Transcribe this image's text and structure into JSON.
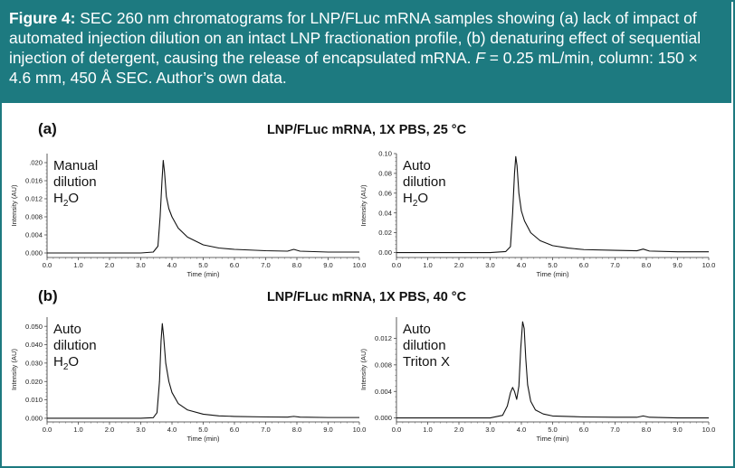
{
  "figure": {
    "label": "Figure 4:",
    "caption_a": " SEC 260 nm chromatograms for LNP/FLuc mRNA samples showing (a) lack of impact of automated injection dilution on an intact LNP fractionation profile, (b) denaturing effect of sequential injection of detergent, causing the release of encapsulated mRNA. ",
    "caption_f": "F",
    "caption_b": " = 0.25 mL/min, column: 150 × 4.6 mm, 450 Å SEC. Author’s own data.",
    "colors": {
      "caption_bg": "#1d7a80",
      "trace": "#111111"
    }
  },
  "rows": [
    {
      "label": "(a)",
      "title": "LNP/FLuc mRNA, 1X PBS, 25 °C"
    },
    {
      "label": "(b)",
      "title": "LNP/FLuc mRNA, 1X PBS, 40 °C"
    }
  ],
  "chart_data": [
    {
      "type": "line",
      "panel": "(a) left",
      "annotation": [
        "Manual",
        "dilution",
        "H2O"
      ],
      "xlabel": "Time (min)",
      "ylabel": "Intensity (AU)",
      "xlim": [
        0,
        10
      ],
      "ylim": [
        -0.001,
        0.022
      ],
      "xticks": [
        0,
        1,
        2,
        3,
        4,
        5,
        6,
        7,
        8,
        9,
        10
      ],
      "xtick_labels": [
        "0.0",
        "1.0",
        "2.0",
        "3.0",
        "4.0",
        "5.0",
        "6.0",
        "7.0",
        "8.0",
        "9.0",
        "10.0"
      ],
      "yticks": [
        0,
        0.004,
        0.008,
        0.012,
        0.016,
        0.02
      ],
      "ytick_labels": [
        "0.000",
        "0.004",
        "0.008",
        "0.012",
        "0.016",
        ".020"
      ],
      "series": [
        {
          "x": [
            0,
            3.0,
            3.4,
            3.55,
            3.62,
            3.68,
            3.72,
            3.76,
            3.82,
            3.9,
            4.0,
            4.2,
            4.5,
            5.0,
            5.5,
            6.0,
            7.0,
            7.7,
            7.9,
            8.1,
            9.0,
            10.0
          ],
          "y": [
            0.0,
            0.0,
            0.0002,
            0.0015,
            0.008,
            0.016,
            0.0205,
            0.018,
            0.0125,
            0.0098,
            0.008,
            0.0055,
            0.0035,
            0.0018,
            0.0011,
            0.0008,
            0.0005,
            0.0004,
            0.0008,
            0.0004,
            0.0002,
            0.0002
          ]
        }
      ]
    },
    {
      "type": "line",
      "panel": "(a) right",
      "annotation": [
        "Auto",
        "dilution",
        "H2O"
      ],
      "xlabel": "Time (min)",
      "ylabel": "Intensity (AU)",
      "xlim": [
        0,
        10
      ],
      "ylim": [
        -0.005,
        0.1
      ],
      "xticks": [
        0,
        1,
        2,
        3,
        4,
        5,
        6,
        7,
        8,
        9,
        10
      ],
      "xtick_labels": [
        "0.0",
        "1.0",
        "2.0",
        "3.0",
        "4.0",
        "5.0",
        "6.0",
        "7.0",
        "8.0",
        "9.0",
        "10.0"
      ],
      "yticks": [
        0,
        0.02,
        0.04,
        0.06,
        0.08,
        0.1
      ],
      "ytick_labels": [
        "0.00",
        "0.02",
        "0.04",
        "0.06",
        "0.08",
        "0.10"
      ],
      "series": [
        {
          "x": [
            0,
            3.0,
            3.5,
            3.65,
            3.72,
            3.78,
            3.82,
            3.86,
            3.92,
            4.0,
            4.1,
            4.3,
            4.6,
            5.0,
            5.5,
            6.0,
            7.0,
            7.7,
            7.9,
            8.1,
            9.0,
            10.0
          ],
          "y": [
            0.0,
            0.0,
            0.001,
            0.006,
            0.04,
            0.08,
            0.097,
            0.088,
            0.06,
            0.042,
            0.032,
            0.02,
            0.012,
            0.007,
            0.0045,
            0.003,
            0.0022,
            0.0018,
            0.0035,
            0.0015,
            0.0008,
            0.0008
          ]
        }
      ]
    },
    {
      "type": "line",
      "panel": "(b) left",
      "annotation": [
        "Auto",
        "dilution",
        "H2O"
      ],
      "xlabel": "Time (min)",
      "ylabel": "Intensity (AU)",
      "xlim": [
        0,
        10
      ],
      "ylim": [
        -0.002,
        0.055
      ],
      "xticks": [
        0,
        1,
        2,
        3,
        4,
        5,
        6,
        7,
        8,
        9,
        10
      ],
      "xtick_labels": [
        "0.0",
        "1.0",
        "2.0",
        "3.0",
        "4.0",
        "5.0",
        "6.0",
        "7.0",
        "8.0",
        "9.0",
        "10.0"
      ],
      "yticks": [
        0,
        0.01,
        0.02,
        0.03,
        0.04,
        0.05
      ],
      "ytick_labels": [
        "0.000",
        "0.010",
        "0.020",
        "0.030",
        "0.040",
        "0.050"
      ],
      "series": [
        {
          "x": [
            0,
            3.0,
            3.4,
            3.52,
            3.6,
            3.65,
            3.69,
            3.73,
            3.8,
            3.9,
            4.0,
            4.2,
            4.5,
            5.0,
            5.5,
            6.0,
            7.0,
            7.7,
            7.9,
            8.1,
            9.0,
            10.0
          ],
          "y": [
            0.0,
            0.0,
            0.0003,
            0.003,
            0.02,
            0.042,
            0.0515,
            0.045,
            0.03,
            0.02,
            0.014,
            0.008,
            0.0045,
            0.0022,
            0.0013,
            0.001,
            0.0007,
            0.0006,
            0.001,
            0.0006,
            0.0004,
            0.0004
          ]
        }
      ]
    },
    {
      "type": "line",
      "panel": "(b) right",
      "annotation": [
        "Auto",
        "dilution",
        "Triton X"
      ],
      "xlabel": "Time (min)",
      "ylabel": "Intensity (AU)",
      "xlim": [
        0,
        10
      ],
      "ylim": [
        -0.0006,
        0.0152
      ],
      "xticks": [
        0,
        1,
        2,
        3,
        4,
        5,
        6,
        7,
        8,
        9,
        10
      ],
      "xtick_labels": [
        "0.0",
        "1.0",
        "2.0",
        "3.0",
        "4.0",
        "5.0",
        "6.0",
        "7.0",
        "8.0",
        "9.0",
        "10.0"
      ],
      "yticks": [
        0,
        0.004,
        0.008,
        0.012
      ],
      "ytick_labels": [
        "0.000",
        "0.004",
        "0.008",
        "0.012"
      ],
      "series": [
        {
          "x": [
            0,
            3.0,
            3.4,
            3.55,
            3.65,
            3.72,
            3.78,
            3.85,
            3.92,
            3.98,
            4.04,
            4.09,
            4.14,
            4.2,
            4.3,
            4.45,
            4.7,
            5.0,
            6.0,
            7.0,
            7.7,
            7.9,
            8.1,
            9.0,
            10.0
          ],
          "y": [
            0.0,
            0.0,
            0.0004,
            0.0018,
            0.0038,
            0.0046,
            0.004,
            0.0028,
            0.0048,
            0.0105,
            0.0145,
            0.0135,
            0.009,
            0.005,
            0.0025,
            0.0012,
            0.0006,
            0.0003,
            0.00015,
            0.0001,
            0.0001,
            0.0003,
            0.0001,
            0.0,
            0.0
          ]
        }
      ]
    }
  ]
}
